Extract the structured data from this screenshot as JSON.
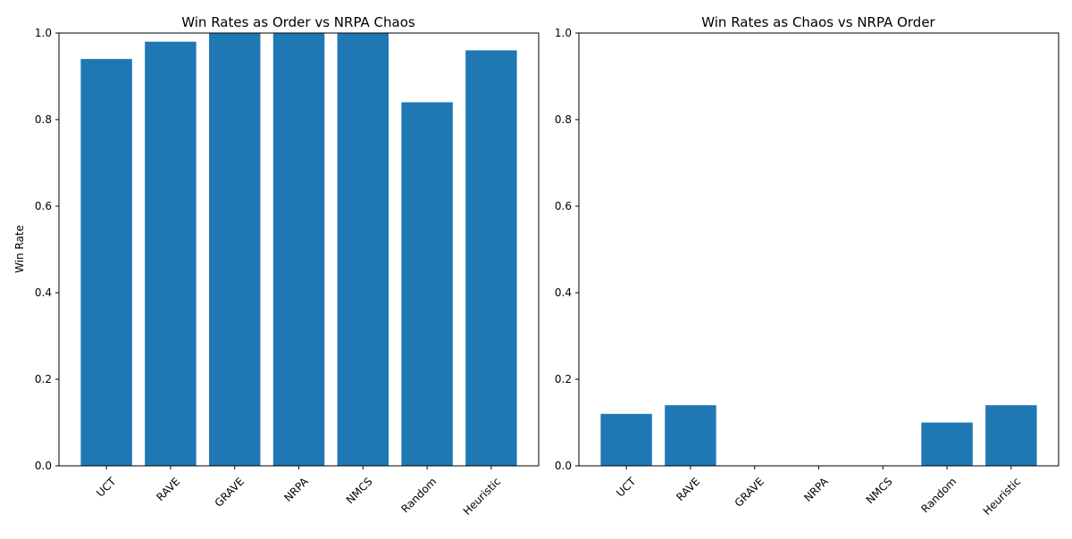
{
  "colors": {
    "bar": "#1f77b4",
    "axis": "#000000",
    "background": "#ffffff"
  },
  "chart_data": [
    {
      "type": "bar",
      "title": "Win Rates as Order vs NRPA Chaos",
      "xlabel": "",
      "ylabel": "Win Rate",
      "categories": [
        "UCT",
        "RAVE",
        "GRAVE",
        "NRPA",
        "NMCS",
        "Random",
        "Heuristic"
      ],
      "values": [
        0.94,
        0.98,
        1.0,
        1.0,
        1.0,
        0.84,
        0.96
      ],
      "ylim": [
        0,
        1.0
      ],
      "yticks": [
        "0.0",
        "0.2",
        "0.4",
        "0.6",
        "0.8",
        "1.0"
      ],
      "grid": false
    },
    {
      "type": "bar",
      "title": "Win Rates as Chaos vs NRPA Order",
      "xlabel": "",
      "ylabel": "",
      "categories": [
        "UCT",
        "RAVE",
        "GRAVE",
        "NRPA",
        "NMCS",
        "Random",
        "Heuristic"
      ],
      "values": [
        0.12,
        0.14,
        0.0,
        0.0,
        0.0,
        0.1,
        0.14
      ],
      "ylim": [
        0,
        1.0
      ],
      "yticks": [
        "0.0",
        "0.2",
        "0.4",
        "0.6",
        "0.8",
        "1.0"
      ],
      "grid": false
    }
  ]
}
